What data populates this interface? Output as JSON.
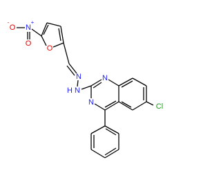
{
  "atoms": [
    {
      "label": "O",
      "charge": "-"
    },
    {
      "label": "N",
      "charge": "+"
    },
    {
      "label": "O"
    },
    {
      "label": "O"
    },
    {
      "label": "N"
    },
    {
      "label": "N",
      "hydrogen": "H"
    },
    {
      "label": "N"
    },
    {
      "label": "N"
    },
    {
      "label": "Cl"
    }
  ]
}
